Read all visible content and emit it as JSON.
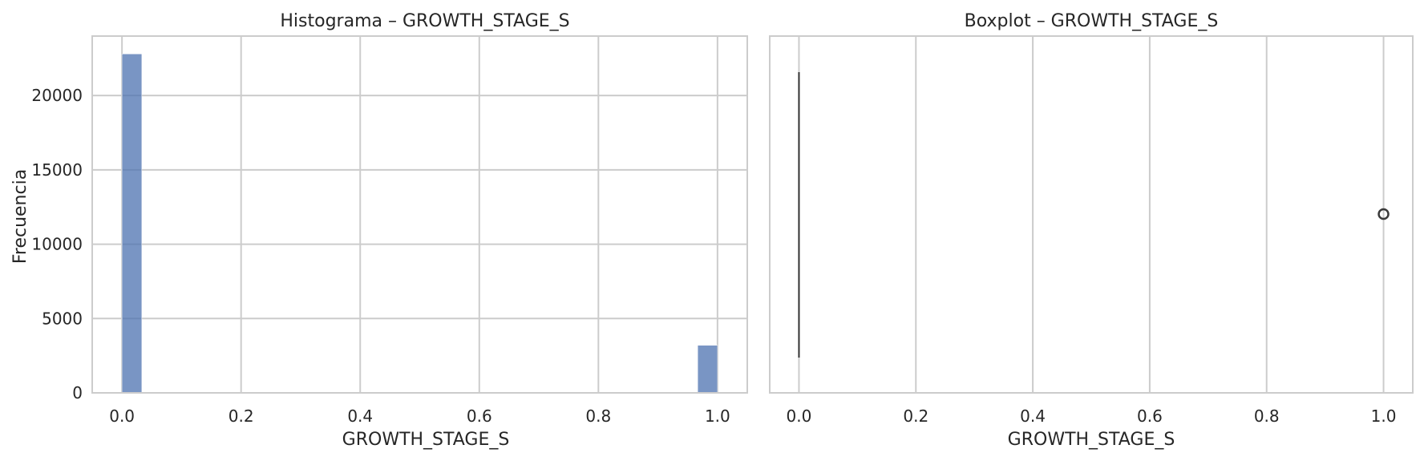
{
  "colors": {
    "bar": "#4c72b0",
    "grid": "#cccccc",
    "spine": "#cccccc",
    "text": "#262626",
    "whisker": "#333333",
    "outlier": "#3a3a3a"
  },
  "chart_data": [
    {
      "type": "histogram",
      "title": "Histograma – GROWTH_STAGE_S",
      "xlabel": "GROWTH_STAGE_S",
      "ylabel": "Frecuencia",
      "xlim": [
        -0.05,
        1.05
      ],
      "ylim": [
        0,
        24000
      ],
      "xticks": [
        0.0,
        0.2,
        0.4,
        0.6,
        0.8,
        1.0
      ],
      "xtick_labels": [
        "0.0",
        "0.2",
        "0.4",
        "0.6",
        "0.8",
        "1.0"
      ],
      "yticks": [
        0,
        5000,
        10000,
        15000,
        20000
      ],
      "ytick_labels": [
        "0",
        "5000",
        "10000",
        "15000",
        "20000"
      ],
      "grid": true,
      "bins": [
        {
          "x0": 0.0,
          "x1": 0.0333,
          "count": 22800
        },
        {
          "x0": 0.9667,
          "x1": 1.0,
          "count": 3200
        }
      ]
    },
    {
      "type": "boxplot",
      "title": "Boxplot – GROWTH_STAGE_S",
      "xlabel": "GROWTH_STAGE_S",
      "xlim": [
        -0.05,
        1.05
      ],
      "xticks": [
        0.0,
        0.2,
        0.4,
        0.6,
        0.8,
        1.0
      ],
      "xtick_labels": [
        "0.0",
        "0.2",
        "0.4",
        "0.6",
        "0.8",
        "1.0"
      ],
      "grid": true,
      "box": {
        "min": 0.0,
        "q1": 0.0,
        "median": 0.0,
        "q3": 0.0,
        "max": 0.0
      },
      "outliers": [
        1.0
      ]
    }
  ]
}
